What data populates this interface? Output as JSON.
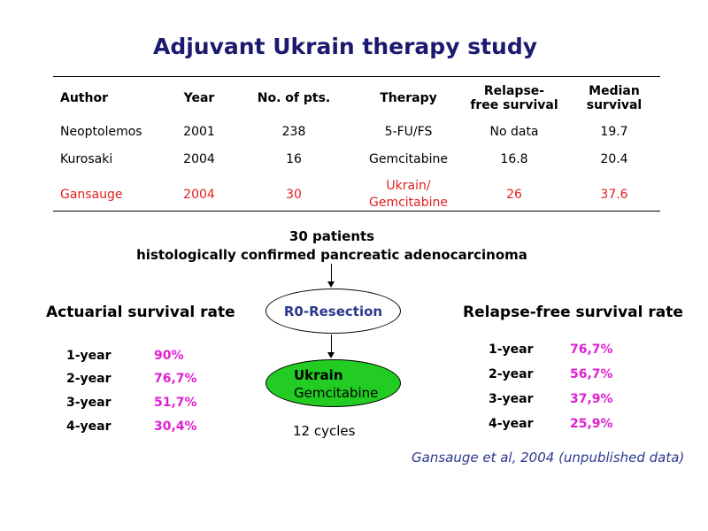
{
  "title": "Adjuvant Ukrain therapy study",
  "table": {
    "headers": [
      "Author",
      "Year",
      "No. of pts.",
      "Therapy",
      "Relapse-\nfree survival",
      "Median\nsurvival"
    ],
    "rows": [
      [
        "Neoptolemos",
        "2001",
        "238",
        "5-FU/FS",
        "No data",
        "19.7"
      ],
      [
        "Kurosaki",
        "2004",
        "16",
        "Gemcitabine",
        "16.8",
        "20.4"
      ],
      [
        "Gansauge",
        "2004",
        "30",
        "Ukrain/\nGemcitabine",
        "26",
        "37.6"
      ]
    ],
    "highlight_color": "#e02020"
  },
  "flow": {
    "patients_line1": "30 patients",
    "patients_line2": "histologically confirmed pancreatic adenocarcinoma",
    "resection": "R0-Resection",
    "therapy_line1": "Ukrain",
    "therapy_line2": "Gemcitabine",
    "cycles": "12 cycles"
  },
  "actuarial": {
    "title": "Actuarial survival rate",
    "items": [
      {
        "label": "1-year",
        "value": "90%"
      },
      {
        "label": "2-year",
        "value": "76,7%"
      },
      {
        "label": "3-year",
        "value": "51,7%"
      },
      {
        "label": "4-year",
        "value": "30,4%"
      }
    ]
  },
  "relapse_free": {
    "title": "Relapse-free survival rate",
    "items": [
      {
        "label": "1-year",
        "value": "76,7%"
      },
      {
        "label": "2-year",
        "value": "56,7%"
      },
      {
        "label": "3-year",
        "value": "37,9%"
      },
      {
        "label": "4-year",
        "value": "25,9%"
      }
    ]
  },
  "citation": "Gansauge et al, 2004 (unpublished data)",
  "colors": {
    "title": "#1a1a6e",
    "highlight": "#e02020",
    "rate_value": "#e020d0",
    "resection_text": "#2b3a8c",
    "therapy_fill": "#22cc22",
    "citation": "#2b3a8c"
  }
}
